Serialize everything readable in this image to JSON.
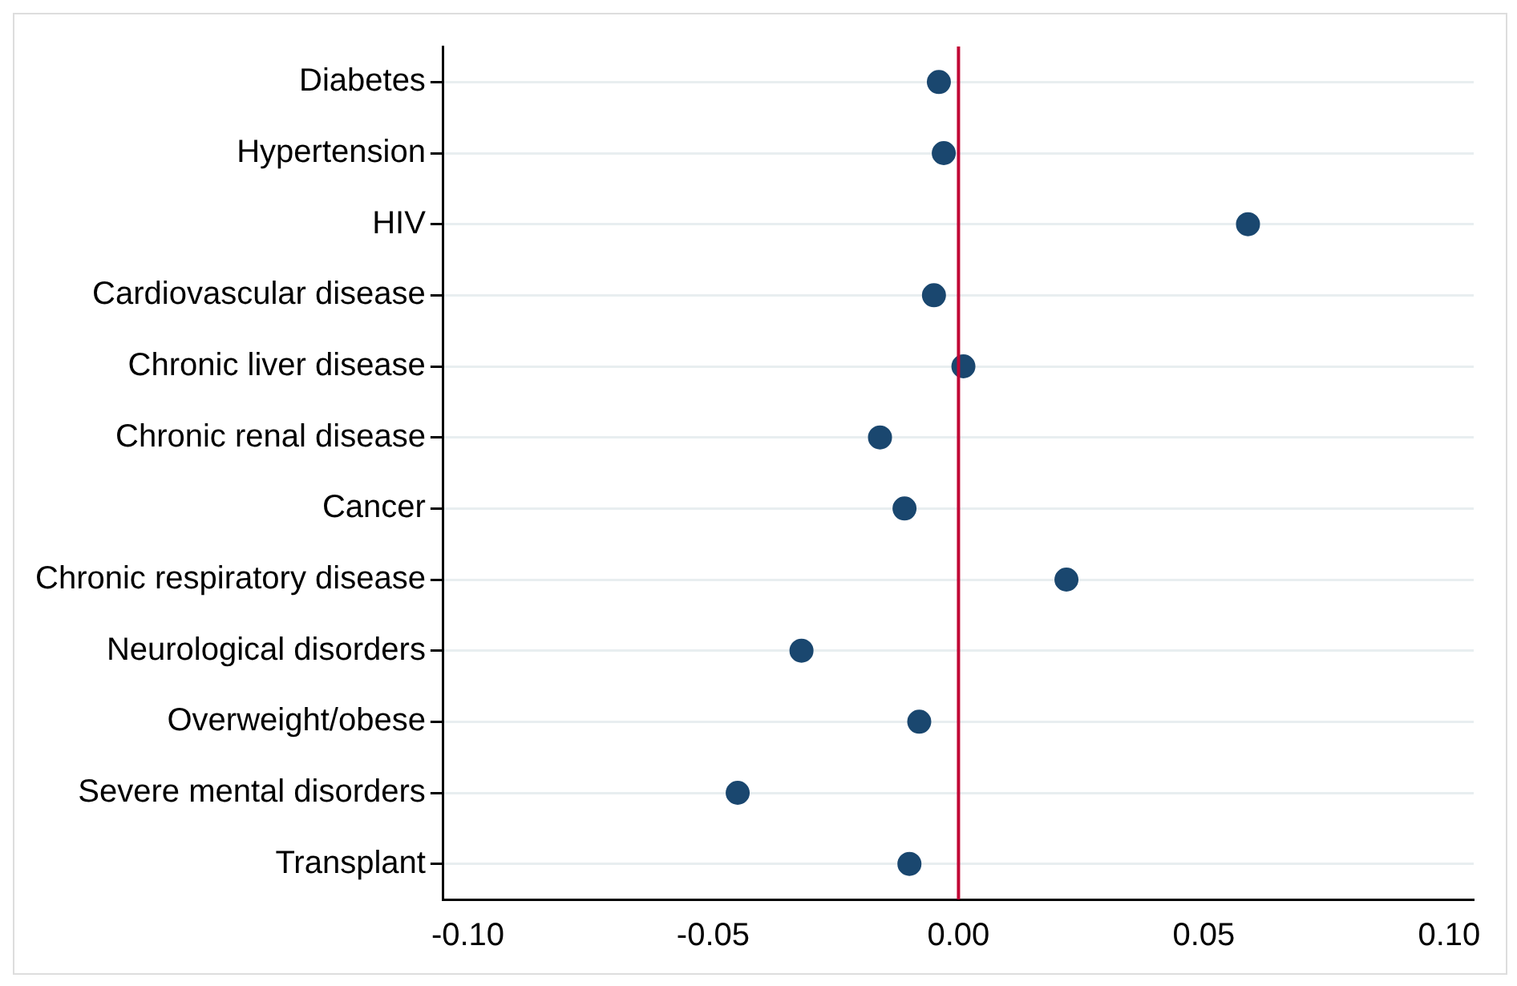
{
  "chart_data": {
    "type": "scatter",
    "categories": [
      "Diabetes",
      "Hypertension",
      "HIV",
      "Cardiovascular disease",
      "Chronic liver disease",
      "Chronic renal disease",
      "Cancer",
      "Chronic respiratory disease",
      "Neurological disorders",
      "Overweight/obese",
      "Severe mental disorders",
      "Transplant"
    ],
    "series": [
      {
        "color": "#1a476f",
        "values": [
          -0.004,
          -0.003,
          0.059,
          -0.005,
          0.001,
          -0.016,
          -0.011,
          0.022,
          -0.032,
          -0.008,
          -0.045,
          -0.01
        ]
      }
    ],
    "orientation": "horizontal",
    "xlim": [
      -0.105,
      0.105
    ],
    "xticks": [
      {
        "value": -0.1,
        "label": "-0.10"
      },
      {
        "value": -0.05,
        "label": "-0.05"
      },
      {
        "value": 0,
        "label": "0.00"
      },
      {
        "value": 0.05,
        "label": "0.05"
      },
      {
        "value": 0.1,
        "label": "0.10"
      }
    ],
    "grid": "y",
    "marker": "circle",
    "legend": false,
    "ref_lines": [
      {
        "axis": "x",
        "value": 0,
        "color": "#c10534"
      }
    ]
  }
}
